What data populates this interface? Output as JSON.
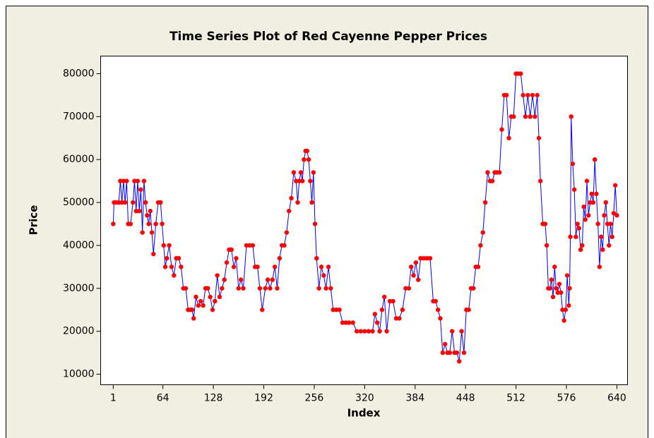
{
  "chart_data": {
    "type": "line",
    "title": "Time Series Plot of Red Cayenne Pepper Prices",
    "x_label": "Index",
    "y_label": "Price",
    "line_color": "#0000ff",
    "marker_color": "#ff0000",
    "grid": false,
    "xlim": [
      -15,
      653.5
    ],
    "ylim": [
      7540,
      84100
    ],
    "xticks": [
      1,
      64,
      128,
      192,
      256,
      320,
      384,
      448,
      512,
      576,
      640
    ],
    "yticks": [
      10000,
      20000,
      30000,
      40000,
      50000,
      60000,
      70000,
      80000
    ],
    "x": [
      1,
      2,
      5,
      8,
      10,
      12,
      14,
      16,
      18,
      20,
      23,
      26,
      28,
      30,
      32,
      34,
      36,
      38,
      40,
      42,
      44,
      46,
      48,
      50,
      52,
      55,
      58,
      61,
      63,
      65,
      67,
      69,
      72,
      75,
      78,
      81,
      84,
      87,
      90,
      93,
      96,
      99,
      101,
      103,
      106,
      109,
      112,
      115,
      118,
      121,
      124,
      127,
      130,
      133,
      136,
      139,
      142,
      145,
      148,
      151,
      154,
      157,
      160,
      163,
      166,
      170,
      174,
      178,
      181,
      184,
      187,
      190,
      194,
      197,
      200,
      203,
      206,
      209,
      212,
      215,
      218,
      221,
      224,
      227,
      230,
      233,
      235,
      237,
      239,
      241,
      243,
      245,
      247,
      249,
      251,
      253,
      255,
      257,
      259,
      262,
      265,
      268,
      271,
      274,
      277,
      280,
      284,
      288,
      292,
      296,
      300,
      305,
      310,
      315,
      320,
      325,
      330,
      333,
      336,
      339,
      342,
      345,
      348,
      352,
      356,
      360,
      364,
      368,
      372,
      376,
      379,
      382,
      385,
      388,
      391,
      395,
      399,
      403,
      407,
      410,
      413,
      416,
      419,
      422,
      425,
      428,
      431,
      434,
      437,
      440,
      443,
      446,
      449,
      452,
      455,
      458,
      461,
      464,
      467,
      470,
      473,
      476,
      479,
      482,
      485,
      488,
      491,
      494,
      497,
      500,
      503,
      506,
      509,
      512,
      515,
      518,
      521,
      524,
      527,
      530,
      533,
      536,
      539,
      541,
      543,
      546,
      549,
      551,
      553,
      555,
      557,
      559,
      561,
      563,
      565,
      567,
      569,
      571,
      573,
      575,
      577,
      579,
      580,
      581,
      582,
      584,
      586,
      588,
      590,
      592,
      594,
      596,
      598,
      600,
      602,
      604,
      606,
      608,
      610,
      612,
      614,
      616,
      618,
      620,
      622,
      624,
      626,
      628,
      630,
      632,
      634,
      636,
      638,
      640
    ],
    "values": [
      45000,
      50000,
      50000,
      50000,
      55000,
      50000,
      55000,
      50000,
      55000,
      45000,
      45000,
      50000,
      55000,
      48000,
      55000,
      48000,
      53000,
      43000,
      55000,
      50000,
      47000,
      45000,
      48000,
      43000,
      38000,
      45000,
      50000,
      50000,
      45000,
      40000,
      35000,
      37000,
      40000,
      35000,
      33000,
      37000,
      37000,
      35000,
      30000,
      30000,
      25000,
      25000,
      25000,
      23000,
      28000,
      26000,
      27000,
      26000,
      30000,
      30000,
      28000,
      25000,
      27000,
      33000,
      28000,
      30000,
      32000,
      36000,
      39000,
      39000,
      35000,
      37000,
      30000,
      32000,
      30000,
      40000,
      40000,
      40000,
      35000,
      35000,
      30000,
      25000,
      30000,
      32000,
      30000,
      32000,
      35000,
      30000,
      37000,
      40000,
      40000,
      43000,
      48000,
      51000,
      57000,
      55000,
      50000,
      55000,
      57000,
      55000,
      60000,
      62000,
      62000,
      60000,
      55000,
      50000,
      57000,
      45000,
      37000,
      30000,
      35000,
      33000,
      30000,
      35000,
      30000,
      25000,
      25000,
      25000,
      22000,
      22000,
      22000,
      22000,
      20000,
      20000,
      20000,
      20000,
      20000,
      24000,
      22000,
      20000,
      25000,
      28000,
      20000,
      27000,
      27000,
      23000,
      23000,
      25000,
      30000,
      30000,
      35000,
      33000,
      36000,
      32000,
      37000,
      37000,
      37000,
      37000,
      27000,
      27000,
      25000,
      23000,
      15000,
      17000,
      15000,
      15000,
      20000,
      15000,
      15000,
      13000,
      20000,
      15000,
      25000,
      25000,
      30000,
      30000,
      35000,
      35000,
      40000,
      43000,
      50000,
      57000,
      55000,
      55000,
      57000,
      57000,
      57000,
      67000,
      75000,
      75000,
      65000,
      70000,
      70000,
      80000,
      80000,
      80000,
      75000,
      70000,
      75000,
      70000,
      75000,
      70000,
      75000,
      65000,
      55000,
      45000,
      45000,
      40000,
      30000,
      30000,
      32000,
      28000,
      35000,
      30000,
      29000,
      31000,
      29000,
      25000,
      22500,
      25000,
      33000,
      26000,
      30000,
      42000,
      70000,
      59000,
      53000,
      42000,
      45000,
      44000,
      39000,
      40000,
      49000,
      46000,
      55000,
      47000,
      50000,
      52000,
      50000,
      60000,
      52000,
      45000,
      35000,
      42000,
      39000,
      47000,
      50000,
      45000,
      40000,
      45000,
      42000,
      47500,
      54000,
      47000
    ]
  }
}
